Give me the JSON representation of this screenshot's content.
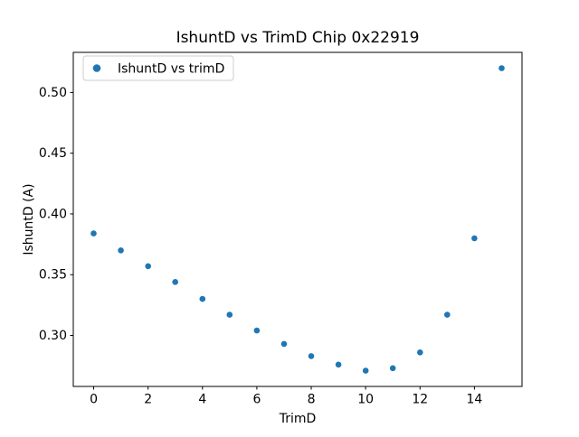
{
  "chart_data": {
    "type": "scatter",
    "title": "IshuntD vs TrimD Chip 0x22919",
    "xlabel": "TrimD",
    "ylabel": "IshuntD (A)",
    "legend": [
      "IshuntD vs trimD"
    ],
    "legend_position": "upper left",
    "grid": false,
    "marker_color": "#1f77b4",
    "x": [
      0,
      1,
      2,
      3,
      4,
      5,
      6,
      7,
      8,
      9,
      10,
      11,
      12,
      13,
      14,
      15
    ],
    "y": [
      0.384,
      0.37,
      0.357,
      0.344,
      0.33,
      0.317,
      0.304,
      0.293,
      0.283,
      0.276,
      0.271,
      0.273,
      0.286,
      0.317,
      0.38,
      0.52
    ],
    "xlim": [
      -0.75,
      15.75
    ],
    "ylim": [
      0.258,
      0.533
    ],
    "xticks": [
      0,
      2,
      4,
      6,
      8,
      10,
      12,
      14
    ],
    "yticks": [
      0.3,
      0.35,
      0.4,
      0.45,
      0.5
    ]
  }
}
